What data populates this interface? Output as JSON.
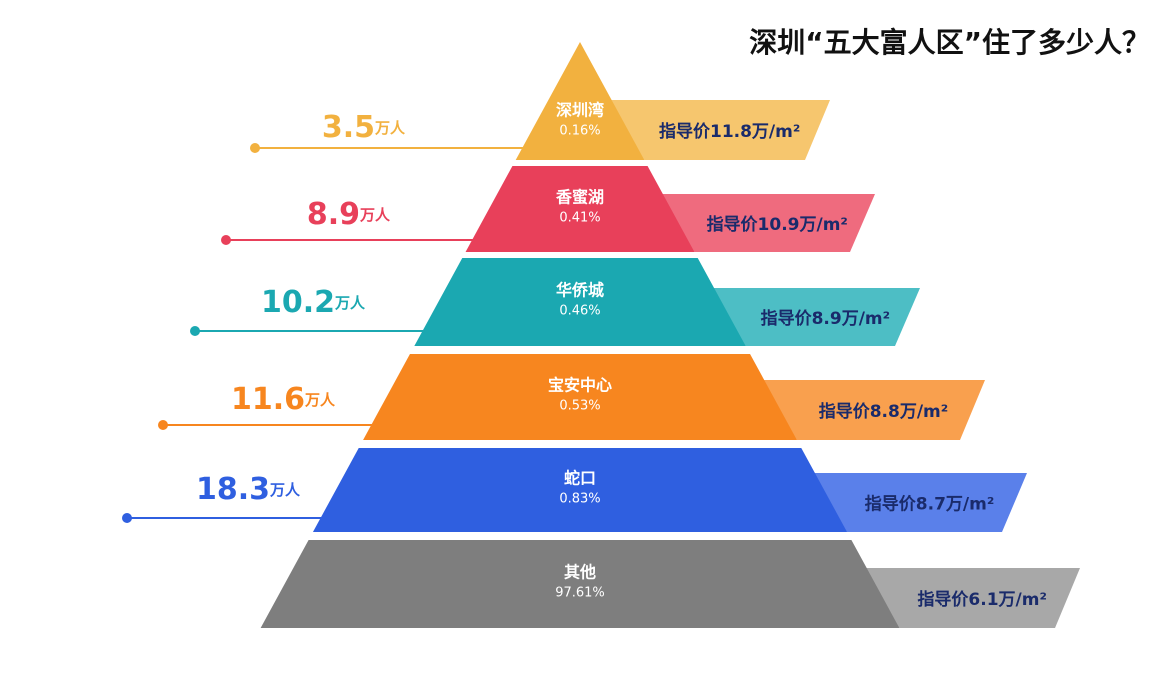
{
  "title": "深圳“五大富人区”住了多少人？",
  "tiers": [
    {
      "name": "深圳湾",
      "share": "0.16%",
      "population": "3.5",
      "unit": "万人",
      "price": "指导价11.8万/m²"
    },
    {
      "name": "香蜜湖",
      "share": "0.41%",
      "population": "8.9",
      "unit": "万人",
      "price": "指导价10.9万/m²"
    },
    {
      "name": "华侨城",
      "share": "0.46%",
      "population": "10.2",
      "unit": "万人",
      "price": "指导价8.9万/m²"
    },
    {
      "name": "宝安中心",
      "share": "0.53%",
      "population": "11.6",
      "unit": "万人",
      "price": "指导价8.8万/m²"
    },
    {
      "name": "蛇口",
      "share": "0.83%",
      "population": "18.3",
      "unit": "万人",
      "price": "指导价8.7万/m²"
    },
    {
      "name": "其他",
      "share": "97.61%",
      "price": "指导价6.1万/m²"
    }
  ]
}
